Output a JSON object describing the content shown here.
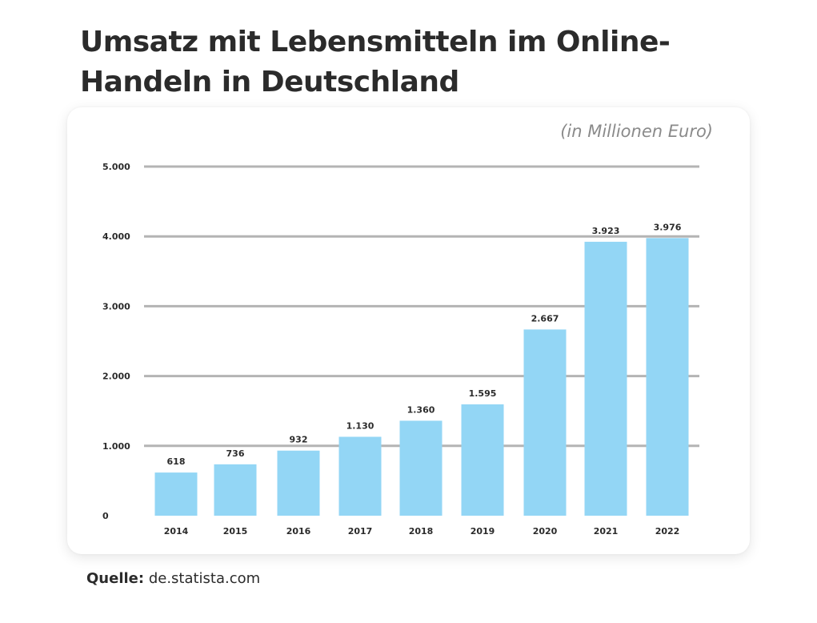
{
  "title": "Umsatz mit Lebensmitteln im Online-Handeln in Deutschland",
  "unit_note": "(in Millionen Euro)",
  "source": {
    "label": "Quelle:",
    "value": "de.statista.com"
  },
  "colors": {
    "bar": "#93d6f5",
    "grid": "#b4b4b4",
    "text": "#2b2b2b"
  },
  "chart_data": {
    "type": "bar",
    "title": "Umsatz mit Lebensmitteln im Online-Handeln in Deutschland",
    "ylabel": "(in Millionen Euro)",
    "xlabel": "",
    "ylim": [
      0,
      5000
    ],
    "yticks": [
      0,
      1000,
      2000,
      3000,
      4000,
      5000
    ],
    "ytick_labels": [
      "0",
      "1.000",
      "2.000",
      "3.000",
      "4.000",
      "5.000"
    ],
    "grid": true,
    "categories": [
      "2014",
      "2015",
      "2016",
      "2017",
      "2018",
      "2019",
      "2020",
      "2021",
      "2022"
    ],
    "values": [
      618,
      736,
      932,
      1130,
      1360,
      1595,
      2667,
      3923,
      3976
    ],
    "value_labels": [
      "618",
      "736",
      "932",
      "1.130",
      "1.360",
      "1.595",
      "2.667",
      "3.923",
      "3.976"
    ]
  }
}
